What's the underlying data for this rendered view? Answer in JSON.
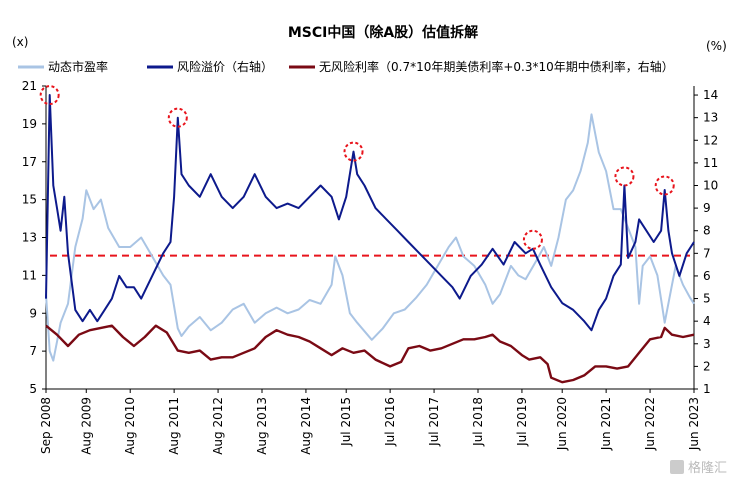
{
  "chart_data": {
    "type": "line",
    "title": "MSCI中国（除A股）估值拆解",
    "left_unit": "(x)",
    "right_unit": "(%)",
    "y_left_range": [
      5,
      21
    ],
    "y_left_ticks": [
      "5",
      "7",
      "9",
      "11",
      "13",
      "15",
      "17",
      "19",
      "21"
    ],
    "y_right_range": [
      1,
      14.4
    ],
    "y_right_ticks": [
      "1",
      "2",
      "3",
      "4",
      "5",
      "6",
      "7",
      "8",
      "9",
      "10",
      "11",
      "12",
      "13",
      "14"
    ],
    "x_range": [
      "2008-09",
      "2023-06"
    ],
    "x_ticks": [
      {
        "date": "2008-09",
        "label": "Sep 2008"
      },
      {
        "date": "2009-08",
        "label": "Aug 2009"
      },
      {
        "date": "2010-08",
        "label": "Aug 2010"
      },
      {
        "date": "2011-08",
        "label": "Aug 2011"
      },
      {
        "date": "2012-08",
        "label": "Aug 2012"
      },
      {
        "date": "2013-08",
        "label": "Aug 2013"
      },
      {
        "date": "2014-08",
        "label": "Aug 2014"
      },
      {
        "date": "2015-07",
        "label": "Jul 2015"
      },
      {
        "date": "2016-07",
        "label": "Jul 2016"
      },
      {
        "date": "2017-07",
        "label": "Jul 2017"
      },
      {
        "date": "2018-07",
        "label": "Jul 2018"
      },
      {
        "date": "2019-07",
        "label": "Jul 2019"
      },
      {
        "date": "2020-06",
        "label": "Jun 2020"
      },
      {
        "date": "2021-06",
        "label": "Jun 2021"
      },
      {
        "date": "2022-06",
        "label": "Jun 2022"
      },
      {
        "date": "2023-06",
        "label": "Jun 2023"
      }
    ],
    "reference_line": {
      "axis": "right",
      "value": 6.9,
      "color": "#e8141c",
      "style": "dashed"
    },
    "series": [
      {
        "name": "动态市盈率",
        "axis": "left",
        "color": "#a9c4e4",
        "points": [
          [
            "2008-09",
            10.0
          ],
          [
            "2008-10",
            7.0
          ],
          [
            "2008-11",
            6.5
          ],
          [
            "2008-12",
            7.5
          ],
          [
            "2009-01",
            8.5
          ],
          [
            "2009-03",
            9.5
          ],
          [
            "2009-05",
            12.5
          ],
          [
            "2009-07",
            14.0
          ],
          [
            "2009-08",
            15.5
          ],
          [
            "2009-10",
            14.5
          ],
          [
            "2009-12",
            15.0
          ],
          [
            "2010-02",
            13.5
          ],
          [
            "2010-05",
            12.5
          ],
          [
            "2010-08",
            12.5
          ],
          [
            "2010-11",
            13.0
          ],
          [
            "2011-02",
            12.0
          ],
          [
            "2011-05",
            11.0
          ],
          [
            "2011-07",
            10.5
          ],
          [
            "2011-09",
            8.2
          ],
          [
            "2011-10",
            7.8
          ],
          [
            "2011-12",
            8.3
          ],
          [
            "2012-03",
            8.8
          ],
          [
            "2012-06",
            8.1
          ],
          [
            "2012-09",
            8.5
          ],
          [
            "2012-12",
            9.2
          ],
          [
            "2013-03",
            9.5
          ],
          [
            "2013-06",
            8.5
          ],
          [
            "2013-09",
            9.0
          ],
          [
            "2013-12",
            9.3
          ],
          [
            "2014-03",
            9.0
          ],
          [
            "2014-06",
            9.2
          ],
          [
            "2014-09",
            9.7
          ],
          [
            "2014-12",
            9.5
          ],
          [
            "2015-03",
            10.5
          ],
          [
            "2015-04",
            12.0
          ],
          [
            "2015-06",
            11.0
          ],
          [
            "2015-08",
            9.0
          ],
          [
            "2015-10",
            8.5
          ],
          [
            "2016-02",
            7.6
          ],
          [
            "2016-05",
            8.2
          ],
          [
            "2016-08",
            9.0
          ],
          [
            "2016-11",
            9.2
          ],
          [
            "2017-02",
            9.8
          ],
          [
            "2017-05",
            10.5
          ],
          [
            "2017-08",
            11.5
          ],
          [
            "2017-11",
            12.5
          ],
          [
            "2018-01",
            13.0
          ],
          [
            "2018-03",
            12.0
          ],
          [
            "2018-06",
            11.5
          ],
          [
            "2018-09",
            10.5
          ],
          [
            "2018-11",
            9.5
          ],
          [
            "2019-01",
            10.0
          ],
          [
            "2019-04",
            11.5
          ],
          [
            "2019-06",
            11.0
          ],
          [
            "2019-08",
            10.8
          ],
          [
            "2019-11",
            11.8
          ],
          [
            "2020-01",
            12.5
          ],
          [
            "2020-03",
            11.5
          ],
          [
            "2020-05",
            13.0
          ],
          [
            "2020-07",
            15.0
          ],
          [
            "2020-09",
            15.5
          ],
          [
            "2020-11",
            16.5
          ],
          [
            "2021-01",
            18.0
          ],
          [
            "2021-02",
            19.5
          ],
          [
            "2021-04",
            17.5
          ],
          [
            "2021-06",
            16.5
          ],
          [
            "2021-08",
            14.5
          ],
          [
            "2021-10",
            14.5
          ],
          [
            "2021-12",
            13.5
          ],
          [
            "2022-02",
            12.5
          ],
          [
            "2022-03",
            9.5
          ],
          [
            "2022-04",
            11.5
          ],
          [
            "2022-06",
            12.0
          ],
          [
            "2022-08",
            11.0
          ],
          [
            "2022-10",
            8.5
          ],
          [
            "2022-12",
            10.5
          ],
          [
            "2023-01",
            11.5
          ],
          [
            "2023-03",
            10.5
          ],
          [
            "2023-05",
            9.8
          ],
          [
            "2023-06",
            9.5
          ]
        ]
      },
      {
        "name": "风险溢价（右轴）",
        "axis": "right",
        "color": "#0d1a8c",
        "points": [
          [
            "2008-09",
            5.0
          ],
          [
            "2008-10",
            14.0
          ],
          [
            "2008-11",
            10.0
          ],
          [
            "2008-12",
            9.0
          ],
          [
            "2009-01",
            8.0
          ],
          [
            "2009-02",
            9.5
          ],
          [
            "2009-03",
            7.0
          ],
          [
            "2009-05",
            4.5
          ],
          [
            "2009-07",
            4.0
          ],
          [
            "2009-09",
            4.5
          ],
          [
            "2009-11",
            4.0
          ],
          [
            "2010-01",
            4.5
          ],
          [
            "2010-03",
            5.0
          ],
          [
            "2010-05",
            6.0
          ],
          [
            "2010-07",
            5.5
          ],
          [
            "2010-09",
            5.5
          ],
          [
            "2010-11",
            5.0
          ],
          [
            "2011-02",
            6.0
          ],
          [
            "2011-05",
            7.0
          ],
          [
            "2011-07",
            7.5
          ],
          [
            "2011-08",
            9.5
          ],
          [
            "2011-09",
            13.0
          ],
          [
            "2011-10",
            10.5
          ],
          [
            "2011-12",
            10.0
          ],
          [
            "2012-03",
            9.5
          ],
          [
            "2012-06",
            10.5
          ],
          [
            "2012-09",
            9.5
          ],
          [
            "2012-12",
            9.0
          ],
          [
            "2013-03",
            9.5
          ],
          [
            "2013-06",
            10.5
          ],
          [
            "2013-09",
            9.5
          ],
          [
            "2013-12",
            9.0
          ],
          [
            "2014-03",
            9.2
          ],
          [
            "2014-06",
            9.0
          ],
          [
            "2014-09",
            9.5
          ],
          [
            "2014-12",
            10.0
          ],
          [
            "2015-03",
            9.5
          ],
          [
            "2015-05",
            8.5
          ],
          [
            "2015-07",
            9.5
          ],
          [
            "2015-09",
            11.5
          ],
          [
            "2015-10",
            10.5
          ],
          [
            "2015-12",
            10.0
          ],
          [
            "2016-03",
            9.0
          ],
          [
            "2016-06",
            8.5
          ],
          [
            "2016-09",
            8.0
          ],
          [
            "2016-12",
            7.5
          ],
          [
            "2017-03",
            7.0
          ],
          [
            "2017-06",
            6.5
          ],
          [
            "2017-09",
            6.0
          ],
          [
            "2017-12",
            5.5
          ],
          [
            "2018-02",
            5.0
          ],
          [
            "2018-05",
            6.0
          ],
          [
            "2018-08",
            6.5
          ],
          [
            "2018-11",
            7.2
          ],
          [
            "2019-02",
            6.5
          ],
          [
            "2019-05",
            7.5
          ],
          [
            "2019-08",
            7.0
          ],
          [
            "2019-10",
            7.2
          ],
          [
            "2019-12",
            6.5
          ],
          [
            "2020-03",
            5.5
          ],
          [
            "2020-06",
            4.8
          ],
          [
            "2020-09",
            4.5
          ],
          [
            "2020-12",
            4.0
          ],
          [
            "2021-02",
            3.6
          ],
          [
            "2021-04",
            4.5
          ],
          [
            "2021-06",
            5.0
          ],
          [
            "2021-08",
            6.0
          ],
          [
            "2021-10",
            6.5
          ],
          [
            "2021-11",
            10.0
          ],
          [
            "2021-12",
            6.8
          ],
          [
            "2022-02",
            7.5
          ],
          [
            "2022-03",
            8.5
          ],
          [
            "2022-05",
            8.0
          ],
          [
            "2022-07",
            7.5
          ],
          [
            "2022-09",
            8.0
          ],
          [
            "2022-10",
            9.8
          ],
          [
            "2022-11",
            8.0
          ],
          [
            "2022-12",
            7.0
          ],
          [
            "2023-02",
            6.0
          ],
          [
            "2023-04",
            7.0
          ],
          [
            "2023-06",
            7.5
          ]
        ]
      },
      {
        "name": "无风险利率（0.7*10年期美债利率+0.3*10年期中债利率，右轴）",
        "axis": "right",
        "color": "#7a0a14",
        "points": [
          [
            "2008-09",
            3.8
          ],
          [
            "2008-12",
            3.4
          ],
          [
            "2009-03",
            2.9
          ],
          [
            "2009-06",
            3.4
          ],
          [
            "2009-09",
            3.6
          ],
          [
            "2009-12",
            3.7
          ],
          [
            "2010-03",
            3.8
          ],
          [
            "2010-06",
            3.3
          ],
          [
            "2010-09",
            2.9
          ],
          [
            "2010-12",
            3.3
          ],
          [
            "2011-03",
            3.8
          ],
          [
            "2011-06",
            3.5
          ],
          [
            "2011-09",
            2.7
          ],
          [
            "2011-12",
            2.6
          ],
          [
            "2012-03",
            2.7
          ],
          [
            "2012-06",
            2.3
          ],
          [
            "2012-09",
            2.4
          ],
          [
            "2012-12",
            2.4
          ],
          [
            "2013-03",
            2.6
          ],
          [
            "2013-06",
            2.8
          ],
          [
            "2013-09",
            3.3
          ],
          [
            "2013-12",
            3.6
          ],
          [
            "2014-03",
            3.4
          ],
          [
            "2014-06",
            3.3
          ],
          [
            "2014-09",
            3.1
          ],
          [
            "2014-12",
            2.8
          ],
          [
            "2015-03",
            2.5
          ],
          [
            "2015-06",
            2.8
          ],
          [
            "2015-09",
            2.6
          ],
          [
            "2015-12",
            2.7
          ],
          [
            "2016-03",
            2.3
          ],
          [
            "2016-07",
            2.0
          ],
          [
            "2016-10",
            2.2
          ],
          [
            "2016-12",
            2.8
          ],
          [
            "2017-03",
            2.9
          ],
          [
            "2017-06",
            2.7
          ],
          [
            "2017-09",
            2.8
          ],
          [
            "2017-12",
            3.0
          ],
          [
            "2018-03",
            3.2
          ],
          [
            "2018-06",
            3.2
          ],
          [
            "2018-09",
            3.3
          ],
          [
            "2018-11",
            3.4
          ],
          [
            "2019-01",
            3.1
          ],
          [
            "2019-04",
            2.9
          ],
          [
            "2019-07",
            2.5
          ],
          [
            "2019-09",
            2.3
          ],
          [
            "2019-12",
            2.4
          ],
          [
            "2020-02",
            2.1
          ],
          [
            "2020-03",
            1.5
          ],
          [
            "2020-06",
            1.3
          ],
          [
            "2020-09",
            1.4
          ],
          [
            "2020-12",
            1.6
          ],
          [
            "2021-03",
            2.0
          ],
          [
            "2021-06",
            2.0
          ],
          [
            "2021-09",
            1.9
          ],
          [
            "2021-12",
            2.0
          ],
          [
            "2022-03",
            2.6
          ],
          [
            "2022-06",
            3.2
          ],
          [
            "2022-09",
            3.3
          ],
          [
            "2022-10",
            3.7
          ],
          [
            "2022-12",
            3.4
          ],
          [
            "2023-03",
            3.3
          ],
          [
            "2023-06",
            3.4
          ]
        ]
      }
    ],
    "highlights": {
      "axis": "right",
      "color": "#e8141c",
      "points": [
        [
          "2008-10",
          14.0
        ],
        [
          "2011-09",
          13.0
        ],
        [
          "2015-09",
          11.5
        ],
        [
          "2019-10",
          7.6
        ],
        [
          "2021-11",
          10.4
        ],
        [
          "2022-10",
          10.0
        ]
      ]
    }
  },
  "watermark": "格隆汇"
}
